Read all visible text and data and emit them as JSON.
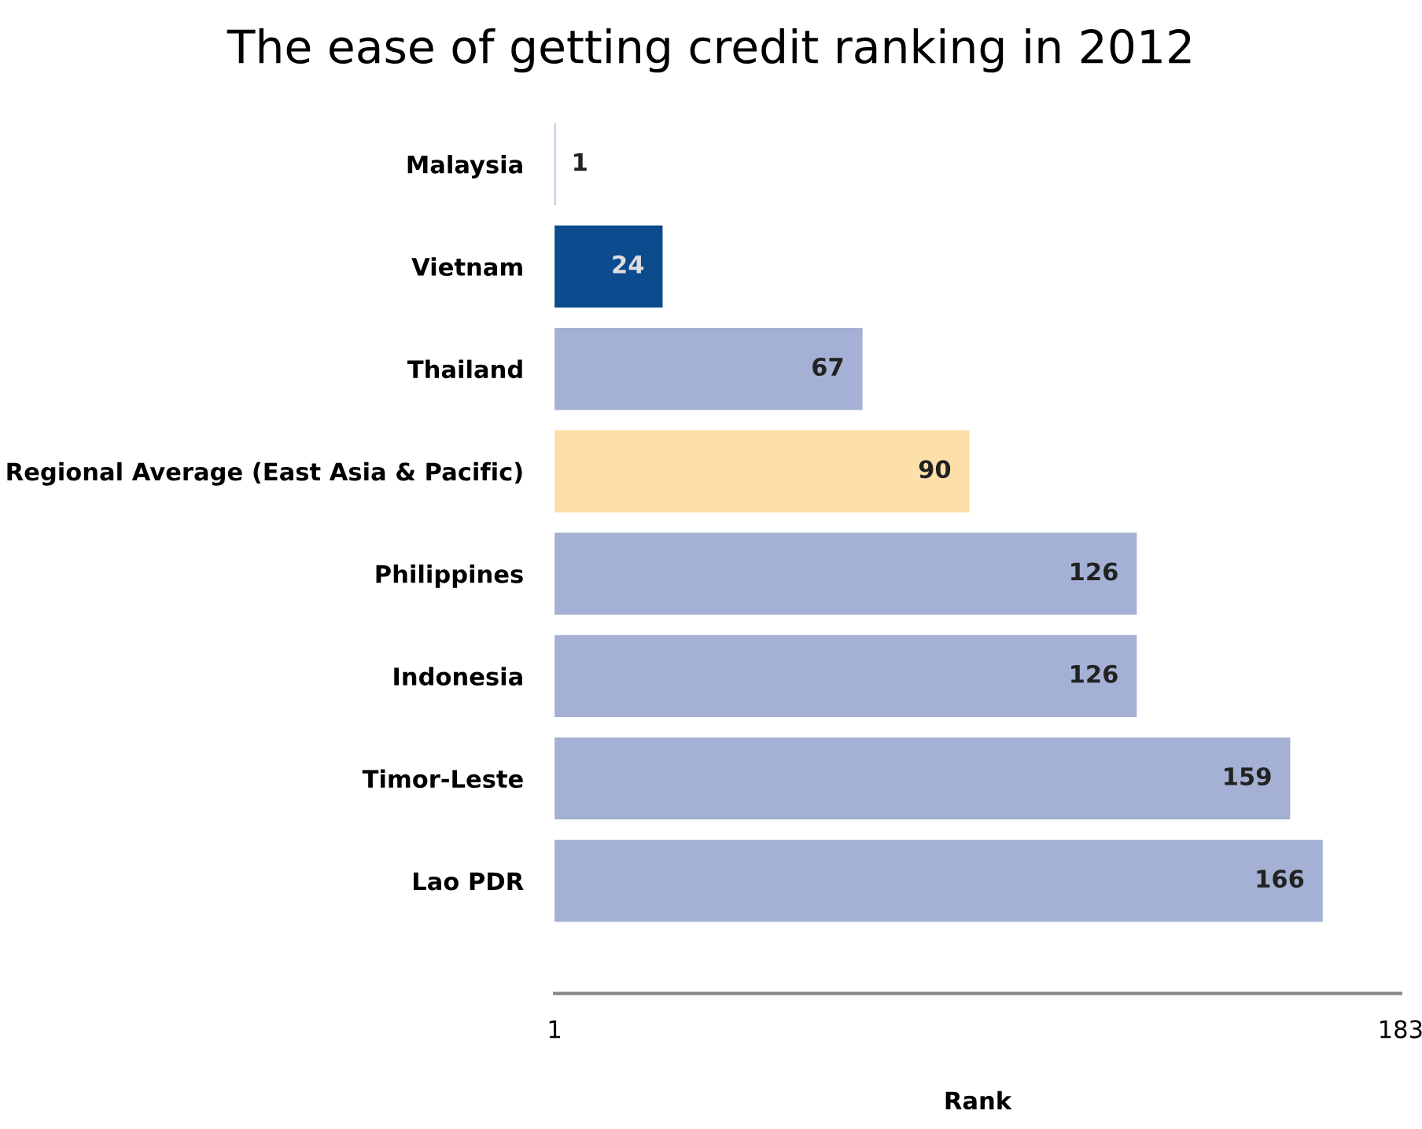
{
  "chart_data": {
    "type": "bar",
    "orientation": "horizontal",
    "title": "The ease of getting credit ranking in 2012",
    "xlabel": "Rank",
    "categories": [
      "Malaysia",
      "Vietnam",
      "Thailand",
      "Regional Average (East Asia & Pacific)",
      "Philippines",
      "Indonesia",
      "Timor-Leste",
      "Lao PDR"
    ],
    "values": [
      1,
      24,
      67,
      90,
      126,
      126,
      159,
      166
    ],
    "colors": [
      "#a4b0d4",
      "#0b4b8e",
      "#a4b0d4",
      "#fddfa9",
      "#a4b0d4",
      "#a4b0d4",
      "#a4b0d4",
      "#a4b0d4"
    ],
    "xlim": [
      1,
      183
    ],
    "xticks": [
      1,
      183
    ],
    "grid": false,
    "legend": false,
    "data_labels": true
  }
}
